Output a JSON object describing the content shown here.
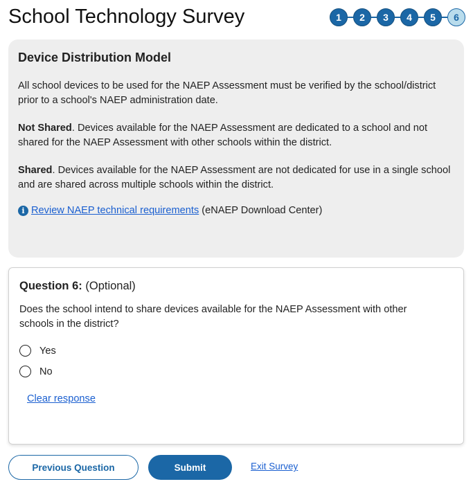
{
  "header": {
    "title": "School Technology Survey",
    "steps": [
      "1",
      "2",
      "3",
      "4",
      "5",
      "6"
    ],
    "current_step": 6
  },
  "info": {
    "heading": "Device Distribution Model",
    "intro": "All school devices to be used for the NAEP Assessment must be verified by the school/district prior to a school's NAEP administration date.",
    "not_shared_label": "Not Shared",
    "not_shared_text": ". Devices available for the NAEP Assessment are dedicated to a school and not shared for the NAEP Assessment with other schools within the district.",
    "shared_label": "Shared",
    "shared_text": ". Devices available for the NAEP Assessment are not dedicated for use in a single school and are shared across multiple schools within the district.",
    "link_text": "Review NAEP technical requirements",
    "link_suffix": "(eNAEP Download Center)",
    "icon": "info-icon"
  },
  "question": {
    "label": "Question 6:",
    "optional": "(Optional)",
    "text": "Does the school intend to share devices available for the NAEP Assessment with other schools in the district?",
    "options": [
      "Yes",
      "No"
    ],
    "clear": "Clear response"
  },
  "footer": {
    "previous": "Previous Question",
    "submit": "Submit",
    "exit": "Exit Survey"
  },
  "colors": {
    "primary": "#1b67a6",
    "current_step": "#b9dcec",
    "link": "#1a5fd0",
    "panel": "#eeeeee"
  }
}
